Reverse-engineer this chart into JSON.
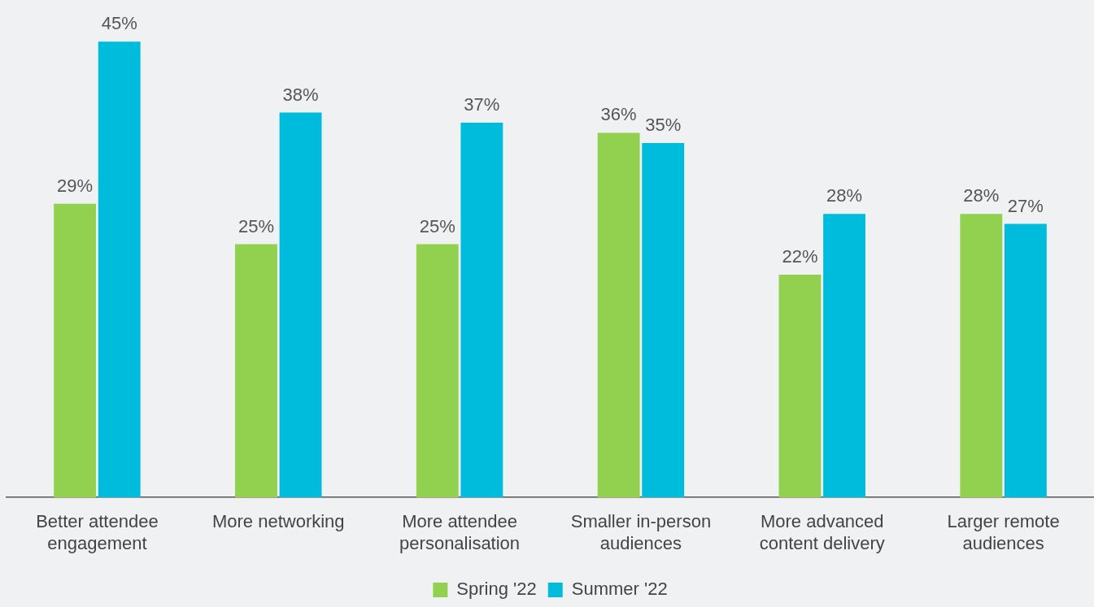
{
  "chart_data": {
    "type": "bar",
    "categories": [
      "Better attendee engagement",
      "More networking",
      "More attendee personalisation",
      "Smaller in-person audiences",
      "More advanced content delivery",
      "Larger remote audiences"
    ],
    "series": [
      {
        "name": "Spring '22",
        "color": "#92d050",
        "values": [
          29,
          25,
          25,
          36,
          22,
          28
        ],
        "value_labels": [
          "29%",
          "25%",
          "25%",
          "36%",
          "22%",
          "28%"
        ]
      },
      {
        "name": "Summer '22",
        "color": "#00bcdc",
        "values": [
          45,
          38,
          37,
          35,
          28,
          27
        ],
        "value_labels": [
          "45%",
          "38%",
          "37%",
          "35%",
          "28%",
          "27%"
        ]
      }
    ],
    "grid": false,
    "legend": "bottom"
  }
}
